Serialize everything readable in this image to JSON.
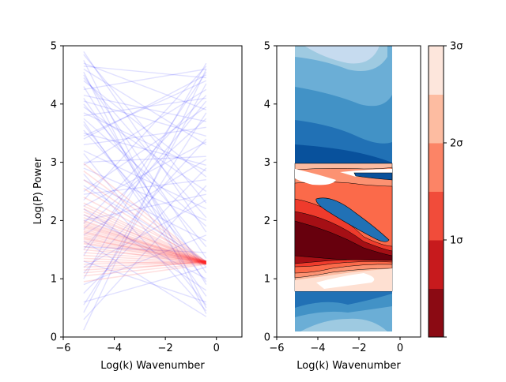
{
  "chart_data": [
    {
      "type": "line",
      "panel": "left",
      "xlabel": "Log(k) Wavenumber",
      "ylabel": "Log(P) Power",
      "xlim": [
        -6,
        1
      ],
      "ylim": [
        0,
        5
      ],
      "xticks": [
        -6,
        -4,
        -2,
        0
      ],
      "yticks": [
        0,
        1,
        2,
        3,
        4,
        5
      ],
      "x_range_of_lines": [
        -5.2,
        -0.4
      ],
      "series": [
        {
          "color": "#0000ff",
          "opacity": 0.12,
          "lines": [
            [
              0.12,
              4.6
            ],
            [
              0.42,
              4.35
            ],
            [
              0.75,
              2.9
            ],
            [
              1.1,
              3.4
            ],
            [
              1.3,
              0.6
            ],
            [
              1.5,
              4.05
            ],
            [
              1.65,
              0.35
            ],
            [
              1.85,
              3.75
            ],
            [
              2.1,
              1.0
            ],
            [
              2.35,
              4.65
            ],
            [
              2.6,
              1.3
            ],
            [
              2.8,
              0.45
            ],
            [
              3.0,
              3.1
            ],
            [
              3.2,
              2.2
            ],
            [
              3.4,
              4.5
            ],
            [
              3.55,
              1.2
            ],
            [
              3.7,
              0.7
            ],
            [
              3.85,
              2.85
            ],
            [
              4.0,
              1.55
            ],
            [
              4.15,
              3.7
            ],
            [
              4.3,
              0.9
            ],
            [
              4.45,
              2.05
            ],
            [
              4.6,
              3.3
            ],
            [
              4.75,
              0.5
            ],
            [
              4.9,
              1.8
            ],
            [
              0.3,
              2.6
            ],
            [
              0.55,
              3.85
            ],
            [
              0.9,
              1.75
            ],
            [
              1.2,
              2.35
            ],
            [
              1.4,
              4.55
            ],
            [
              1.75,
              3.05
            ],
            [
              2.0,
              2.45
            ],
            [
              2.2,
              0.8
            ],
            [
              2.5,
              3.95
            ],
            [
              2.7,
              1.65
            ],
            [
              2.95,
              4.25
            ],
            [
              3.15,
              0.55
            ],
            [
              3.3,
              3.6
            ],
            [
              3.5,
              2.95
            ],
            [
              3.65,
              0.95
            ],
            [
              3.8,
              4.1
            ],
            [
              3.95,
              2.5
            ],
            [
              4.1,
              1.1
            ],
            [
              4.25,
              4.6
            ],
            [
              4.4,
              2.75
            ],
            [
              4.55,
              0.4
            ],
            [
              4.7,
              3.9
            ],
            [
              4.85,
              2.3
            ],
            [
              1.0,
              4.7
            ],
            [
              1.55,
              1.45
            ],
            [
              2.25,
              3.35
            ],
            [
              2.9,
              2.0
            ],
            [
              3.45,
              4.4
            ],
            [
              4.05,
              3.45
            ],
            [
              4.5,
              1.35
            ],
            [
              0.6,
              1.2
            ],
            [
              1.95,
              4.15
            ],
            [
              2.45,
              2.7
            ],
            [
              3.75,
              1.9
            ],
            [
              4.65,
              4.45
            ]
          ]
        },
        {
          "color": "#ff0000",
          "opacity": 0.12,
          "converge": [
            1.25,
            1.3
          ],
          "starts": [
            0.95,
            1.05,
            1.15,
            1.2,
            1.25,
            1.3,
            1.35,
            1.4,
            1.45,
            1.5,
            1.55,
            1.6,
            1.62,
            1.65,
            1.68,
            1.7,
            1.72,
            1.75,
            1.78,
            1.8,
            1.82,
            1.85,
            1.88,
            1.9,
            1.92,
            1.95,
            1.98,
            2.0,
            2.05,
            2.1,
            2.15,
            2.2,
            2.25,
            2.3,
            2.4,
            2.55,
            2.7,
            2.85,
            2.98,
            1.1
          ]
        }
      ]
    },
    {
      "type": "contour",
      "panel": "right",
      "xlabel": "Log(k) Wavenumber",
      "xlim": [
        -6,
        1
      ],
      "ylim": [
        0,
        5
      ],
      "xticks": [
        -6,
        -4,
        -2,
        0
      ],
      "yticks": [
        0,
        1,
        2,
        3,
        4,
        5
      ],
      "x_range": [
        -5.2,
        -0.4
      ],
      "upper_fill": [
        "#08519c",
        "#2171b5",
        "#4292c6",
        "#6baed6",
        "#9ecae1",
        "#c6dbef"
      ],
      "lower_fill": [
        "#67000d",
        "#a50f15",
        "#cb181d",
        "#ef3b2c",
        "#fb6a4a",
        "#fc9272",
        "#fcbba1",
        "#fee0d2",
        "#ffffff"
      ],
      "colorbar": {
        "tick_labels": [
          "1σ",
          "2σ",
          "3σ"
        ],
        "colors": [
          "#8b0a13",
          "#c71a1d",
          "#f14c3a",
          "#fc8466",
          "#fdbca1",
          "#fde6dc"
        ]
      }
    }
  ]
}
